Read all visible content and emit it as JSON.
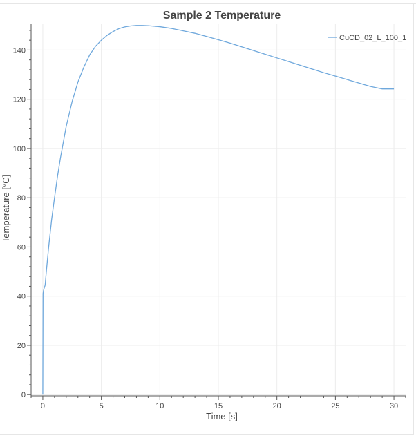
{
  "chart_data": {
    "type": "line",
    "title": "Sample 2 Temperature",
    "xlabel": "Time [s]",
    "ylabel": "Temperature [°C]",
    "xlim": [
      -1,
      31
    ],
    "ylim": [
      -0.5,
      150.5
    ],
    "xticks": [
      0,
      5,
      10,
      15,
      20,
      25,
      30
    ],
    "yticks": [
      0,
      20,
      40,
      60,
      80,
      100,
      120,
      140
    ],
    "grid": true,
    "legend_position": "top-right",
    "series": [
      {
        "name": "CuCD_02_L_100_1",
        "color": "#6fa8dc",
        "x": [
          0,
          0.02,
          0.05,
          0.1,
          0.2,
          0.3,
          0.5,
          0.75,
          1,
          1.25,
          1.5,
          2,
          2.5,
          3,
          3.5,
          4,
          4.5,
          5,
          5.5,
          6,
          6.5,
          7,
          7.5,
          8,
          8.5,
          9,
          9.5,
          10,
          11,
          12,
          13,
          14,
          15,
          16,
          17,
          18,
          19,
          20,
          21,
          22,
          23,
          24,
          25,
          26,
          27,
          28,
          29,
          30
        ],
        "y": [
          0,
          41,
          42,
          43,
          44.5,
          50,
          60,
          71,
          80,
          88.5,
          96,
          109,
          119,
          127,
          133,
          138,
          141.5,
          144,
          146,
          147.5,
          148.7,
          149.4,
          149.8,
          150,
          150,
          149.9,
          149.7,
          149.5,
          148.8,
          147.8,
          146.8,
          145.5,
          144.2,
          142.8,
          141.3,
          139.8,
          138.3,
          136.8,
          135.3,
          133.8,
          132.3,
          130.8,
          129.4,
          128,
          126.6,
          125.2,
          124.2,
          124.2
        ]
      }
    ]
  }
}
